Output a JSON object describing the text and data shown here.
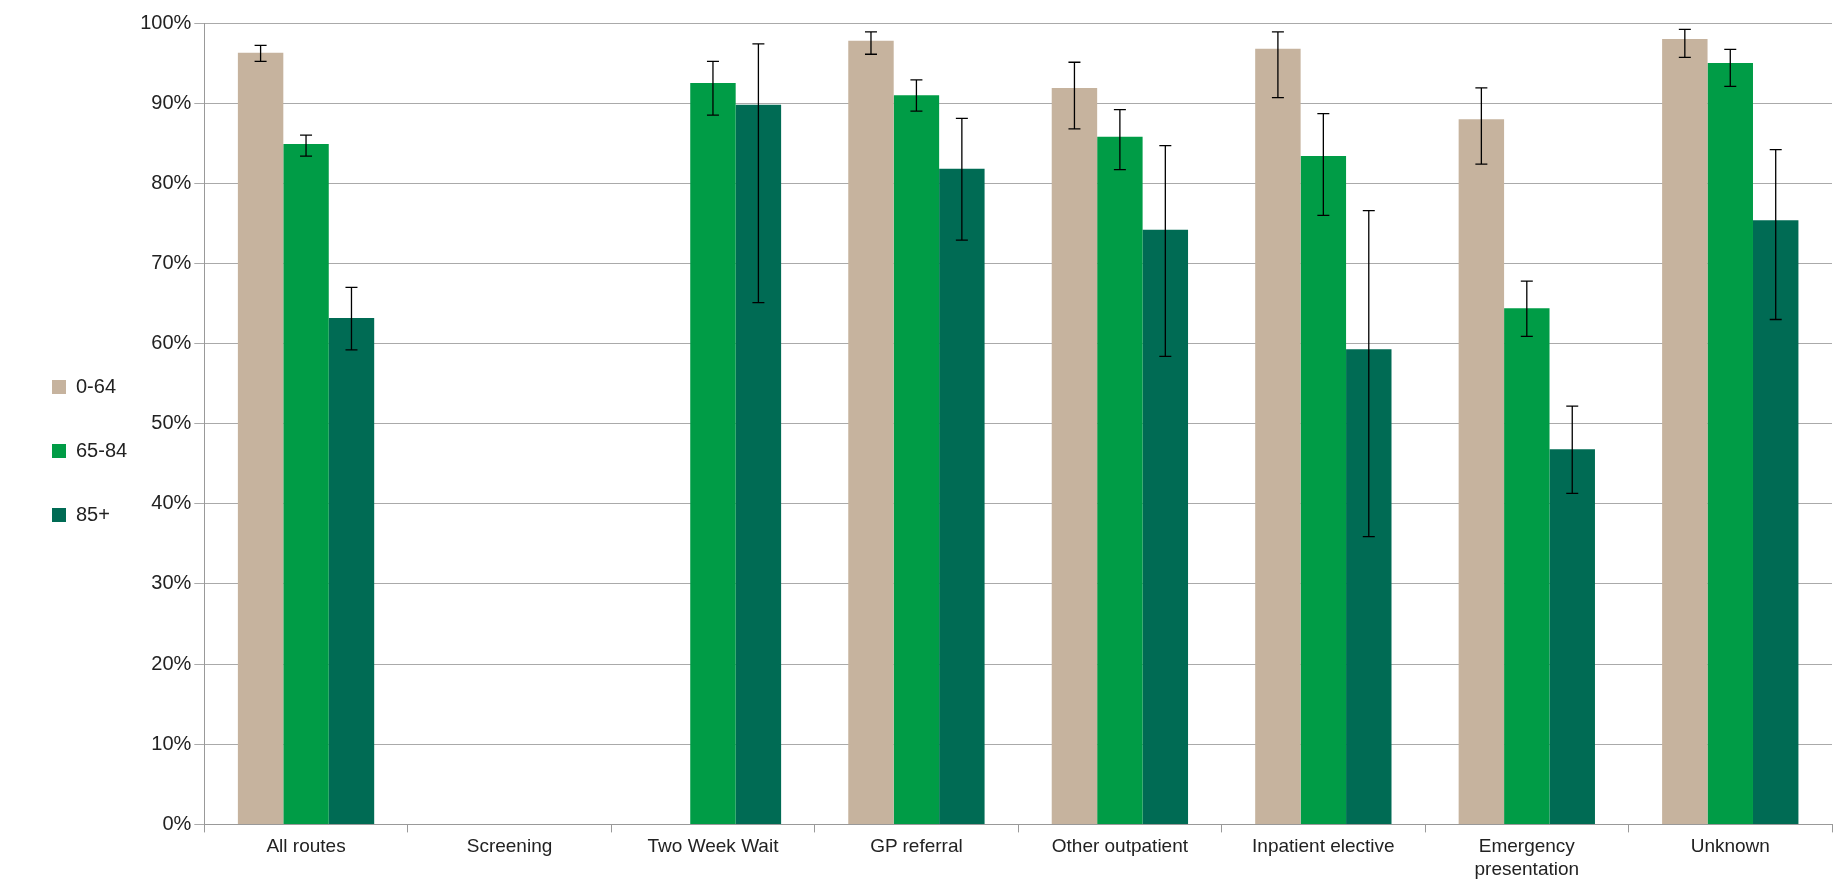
{
  "chart_data": {
    "type": "bar",
    "categories": [
      "All routes",
      "Screening",
      "Two Week Wait",
      "GP referral",
      "Other outpatient",
      "Inpatient elective",
      "Emergency presentation",
      "Unknown"
    ],
    "series": [
      {
        "name": "0-64",
        "color": "#c6b39e",
        "values": [
          96.3,
          null,
          null,
          97.8,
          91.9,
          96.8,
          88.0,
          98.0
        ],
        "errors": [
          [
            95.2,
            97.2
          ],
          null,
          null,
          [
            96.1,
            98.9
          ],
          [
            86.8,
            95.1
          ],
          [
            90.7,
            98.9
          ],
          [
            82.4,
            91.9
          ],
          [
            95.7,
            99.2
          ]
        ]
      },
      {
        "name": "65-84",
        "color": "#009c46",
        "values": [
          84.9,
          null,
          92.5,
          91.0,
          85.8,
          83.4,
          64.4,
          95.0
        ],
        "errors": [
          [
            83.4,
            86.0
          ],
          null,
          [
            88.5,
            95.2
          ],
          [
            89.0,
            92.9
          ],
          [
            81.7,
            89.2
          ],
          [
            76.0,
            88.7
          ],
          [
            60.9,
            67.8
          ],
          [
            92.1,
            96.7
          ]
        ]
      },
      {
        "name": "85+",
        "color": "#006b54",
        "values": [
          63.2,
          null,
          89.8,
          81.8,
          74.2,
          59.3,
          46.8,
          75.4
        ],
        "errors": [
          [
            59.2,
            67.0
          ],
          null,
          [
            65.1,
            97.4
          ],
          [
            72.9,
            88.1
          ],
          [
            58.4,
            84.7
          ],
          [
            35.9,
            76.6
          ],
          [
            41.3,
            52.2
          ],
          [
            63.0,
            84.2
          ]
        ]
      }
    ],
    "ylim": [
      0,
      100
    ],
    "yticks": [
      {
        "value": 0,
        "label": "0%"
      },
      {
        "value": 10,
        "label": "10%"
      },
      {
        "value": 20,
        "label": "20%"
      },
      {
        "value": 30,
        "label": "30%"
      },
      {
        "value": 40,
        "label": "40%"
      },
      {
        "value": 50,
        "label": "50%"
      },
      {
        "value": 60,
        "label": "60%"
      },
      {
        "value": 70,
        "label": "70%"
      },
      {
        "value": 80,
        "label": "80%"
      },
      {
        "value": 90,
        "label": "90%"
      },
      {
        "value": 100,
        "label": "100%"
      }
    ],
    "grid": "y",
    "legend": "left"
  }
}
